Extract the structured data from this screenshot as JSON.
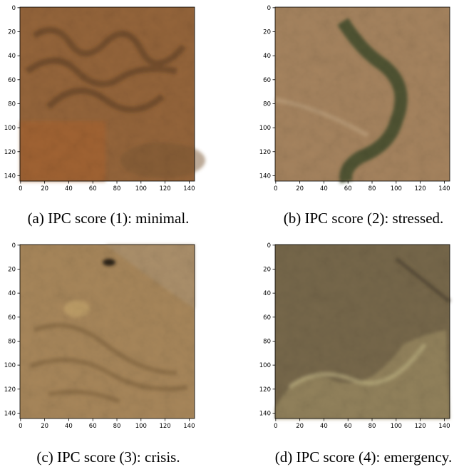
{
  "figure": {
    "panels": [
      {
        "caption": "(a) IPC score (1): minimal.",
        "xlim": [
          -0.5,
          144.5
        ],
        "ylim": [
          144.5,
          -0.5
        ],
        "xticks": [
          0,
          20,
          40,
          60,
          80,
          100,
          120,
          140
        ],
        "yticks": [
          0,
          20,
          40,
          60,
          80,
          100,
          120,
          140
        ]
      },
      {
        "caption": "(b) IPC score (2): stressed.",
        "xlim": [
          -0.5,
          144.5
        ],
        "ylim": [
          144.5,
          -0.5
        ],
        "xticks": [
          0,
          20,
          40,
          60,
          80,
          100,
          120,
          140
        ],
        "yticks": [
          0,
          20,
          40,
          60,
          80,
          100,
          120,
          140
        ]
      },
      {
        "caption": "(c) IPC score (3): crisis.",
        "xlim": [
          -0.5,
          144.5
        ],
        "ylim": [
          144.5,
          -0.5
        ],
        "xticks": [
          0,
          20,
          40,
          60,
          80,
          100,
          120,
          140
        ],
        "yticks": [
          0,
          20,
          40,
          60,
          80,
          100,
          120,
          140
        ]
      },
      {
        "caption": "(d) IPC score (4): emergency.",
        "xlim": [
          -0.5,
          144.5
        ],
        "ylim": [
          144.5,
          -0.5
        ],
        "xticks": [
          0,
          20,
          40,
          60,
          80,
          100,
          120,
          140
        ],
        "yticks": [
          0,
          20,
          40,
          60,
          80,
          100,
          120,
          140
        ]
      }
    ]
  }
}
